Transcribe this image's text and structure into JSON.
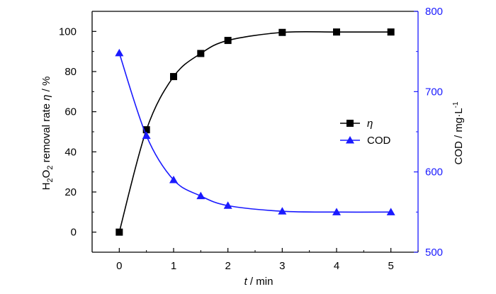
{
  "chart_data": {
    "type": "line",
    "x_axis": {
      "label_var": "t",
      "label_unit": " / min",
      "range": [
        -0.5,
        5.5
      ],
      "ticks": [
        0,
        1,
        2,
        3,
        4,
        5
      ]
    },
    "y_left": {
      "label_pre": "H",
      "label_sub1": "2",
      "label_mid": "O",
      "label_sub2": "2",
      "label_text": " removal rate ",
      "label_var": "η",
      "label_unit": " / %",
      "range": [
        -10,
        110
      ],
      "ticks": [
        0,
        20,
        40,
        60,
        80,
        100
      ],
      "color": "#000000"
    },
    "y_right": {
      "label_text": "COD / mg·L",
      "label_sup": "-1",
      "range": [
        500,
        800
      ],
      "ticks": [
        500,
        600,
        700,
        800
      ],
      "color": "#1a1aff"
    },
    "series": [
      {
        "name": "η",
        "axis": "left",
        "color": "#000000",
        "marker": "square",
        "x": [
          0,
          0.5,
          1,
          1.5,
          2,
          3,
          4,
          5
        ],
        "y": [
          0,
          51,
          77.5,
          89,
          95.5,
          99.5,
          99.7,
          99.7
        ]
      },
      {
        "name": "COD",
        "axis": "right",
        "color": "#1a1aff",
        "marker": "triangle",
        "x": [
          0,
          0.5,
          1,
          1.5,
          2,
          3,
          4,
          5
        ],
        "y": [
          748,
          645,
          590,
          570,
          558,
          551,
          550,
          550
        ]
      }
    ],
    "legend": {
      "position": "center-right",
      "items": [
        "η",
        "COD"
      ]
    },
    "grid": false
  }
}
